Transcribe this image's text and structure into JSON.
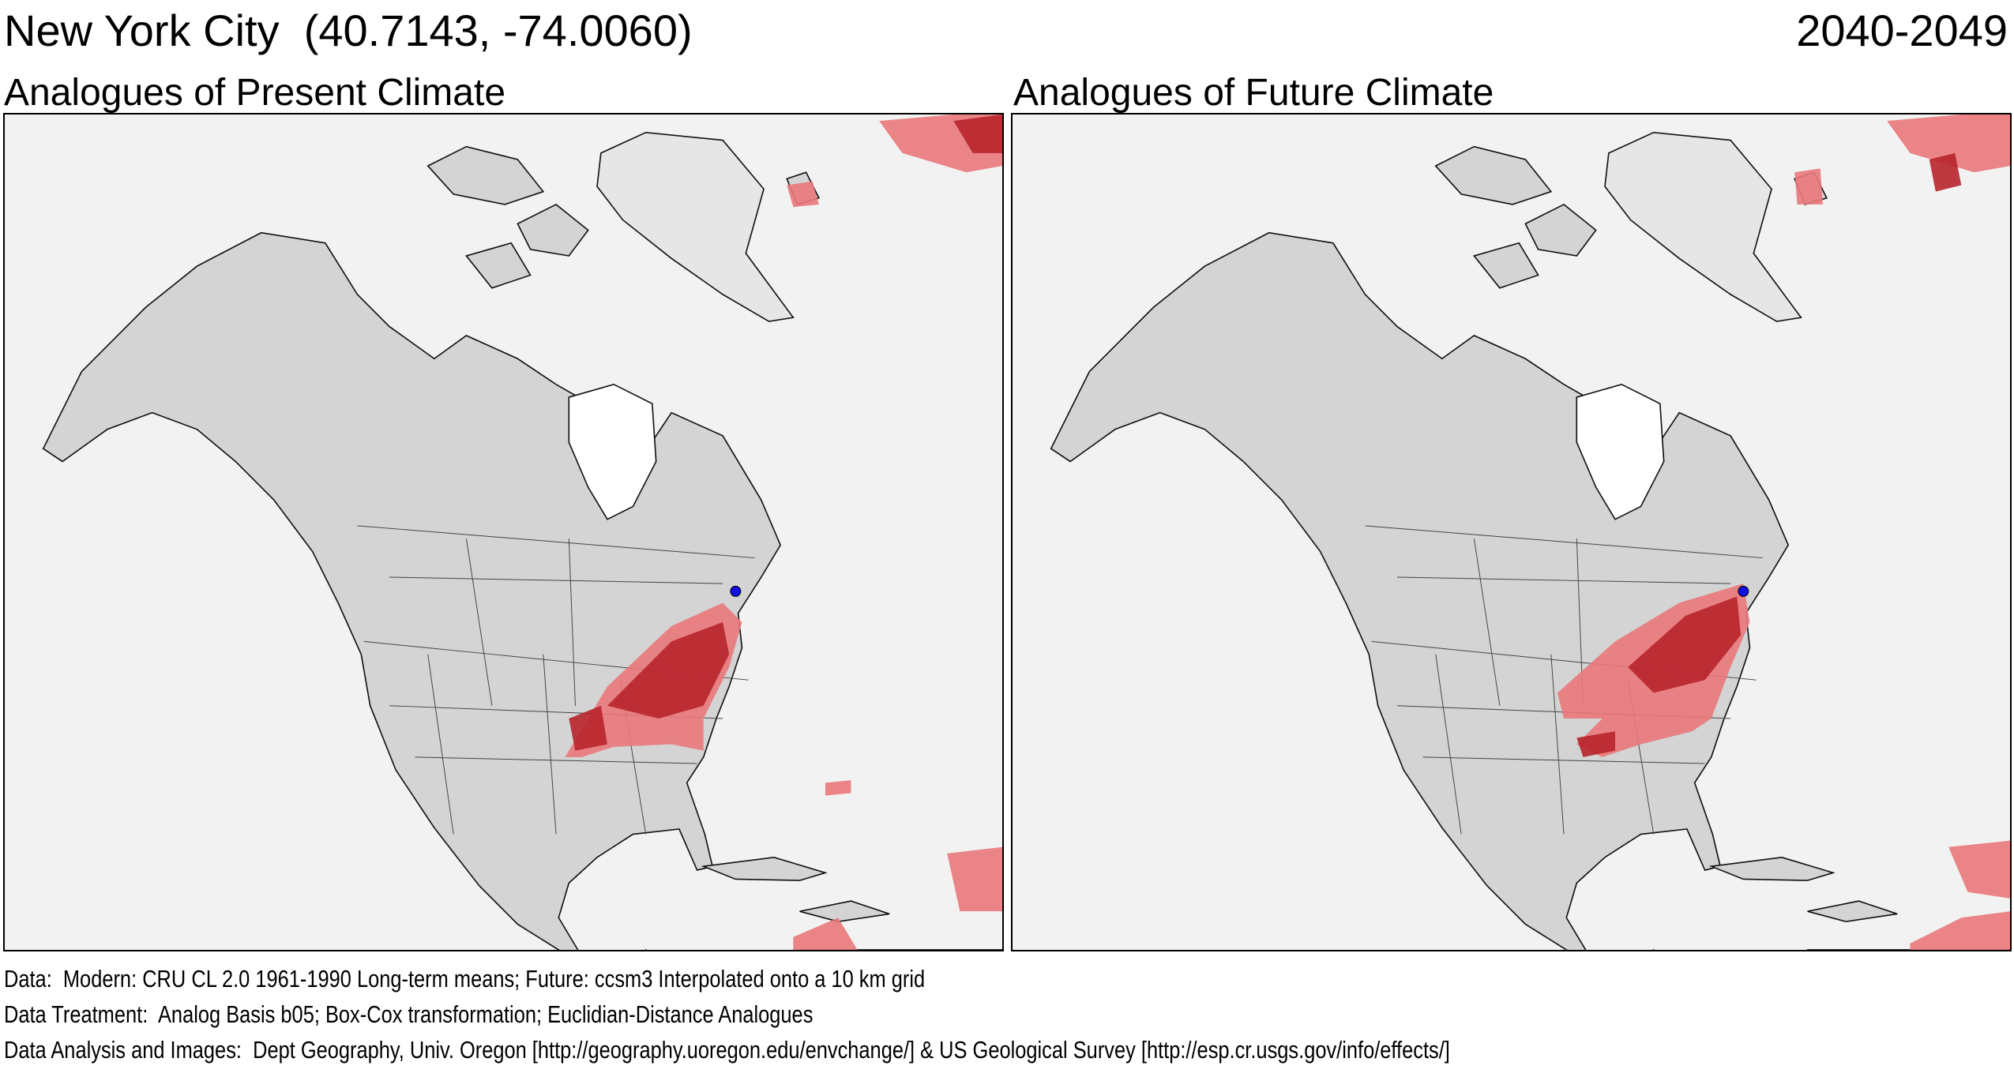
{
  "header": {
    "location": "New York City  (40.7143, -74.0060)",
    "period": "2040-2049"
  },
  "panels": [
    {
      "title": "Analogues of Present Climate"
    },
    {
      "title": "Analogues of Future Climate"
    }
  ],
  "map": {
    "land_color": "#d4d4d4",
    "ocean_color": "#f2f2f2",
    "analog_light_color": "#e9787a",
    "analog_dark_color": "#b8232b",
    "location_marker_color": "#1010e0",
    "location_marker": "New York City"
  },
  "footer": {
    "data": "Data:  Modern: CRU CL 2.0 1961-1990 Long-term means; Future: ccsm3 Interpolated onto a 10 km grid",
    "treatment": "Data Treatment:  Analog Basis b05; Box-Cox transformation; Euclidian-Distance Analogues",
    "analysis": "Data Analysis and Images:  Dept Geography, Univ. Oregon [http://geography.uoregon.edu/envchange/] & US Geological Survey [http://esp.cr.usgs.gov/info/effects/]"
  }
}
